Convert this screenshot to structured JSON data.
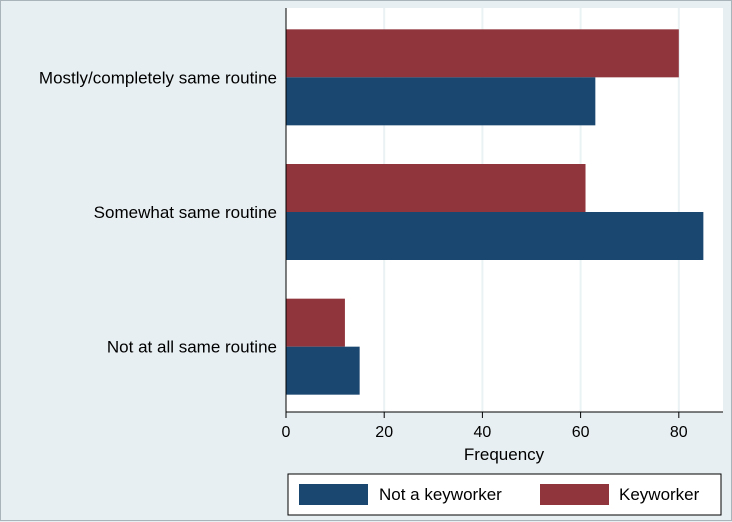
{
  "chart_data": {
    "type": "bar",
    "orientation": "horizontal",
    "categories": [
      "Mostly/completely same routine",
      "Somewhat same routine",
      "Not at all same routine"
    ],
    "series": [
      {
        "name": "Keyworker",
        "values": [
          80,
          61,
          12
        ],
        "color": "#90353b"
      },
      {
        "name": "Not a keyworker",
        "values": [
          63,
          85,
          15
        ],
        "color": "#1a476f"
      }
    ],
    "xlabel": "Frequency",
    "ylabel": "",
    "xlim": [
      0,
      89
    ],
    "xticks": [
      "0",
      "20",
      "40",
      "60",
      "80"
    ],
    "grid": true,
    "legend_position": "bottom-right"
  },
  "legend": {
    "items": [
      {
        "label": "Not a keyworker",
        "color": "#1a476f"
      },
      {
        "label": "Keyworker",
        "color": "#90353b"
      }
    ]
  }
}
